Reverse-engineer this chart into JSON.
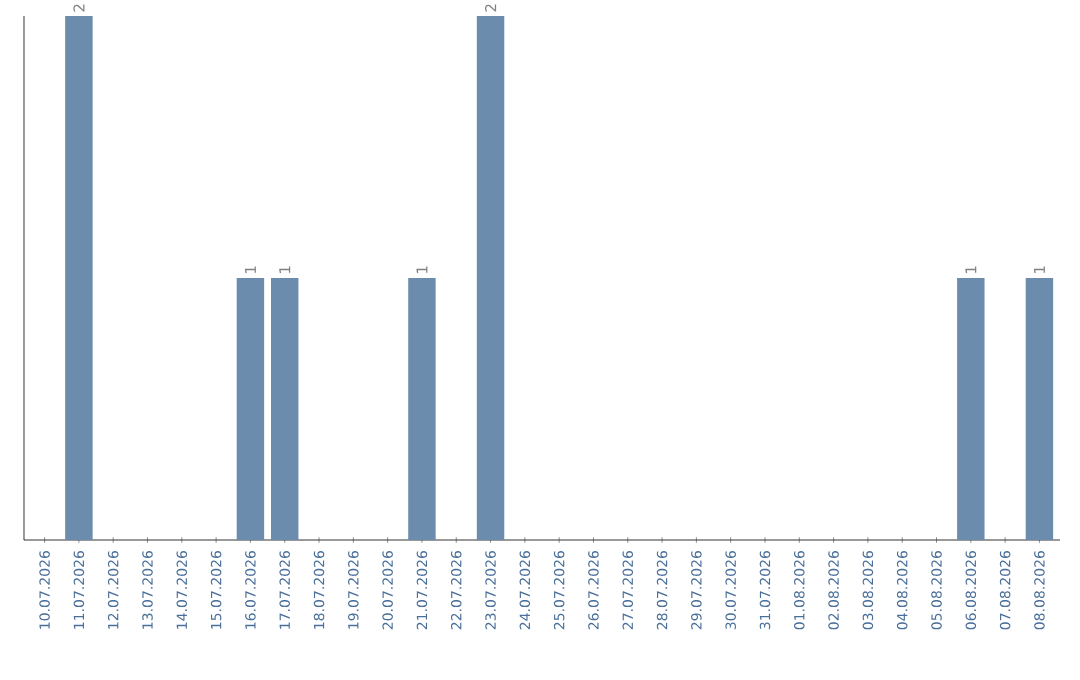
{
  "chart_data": {
    "type": "bar",
    "categories": [
      "10.07.2026",
      "11.07.2026",
      "12.07.2026",
      "13.07.2026",
      "14.07.2026",
      "15.07.2026",
      "16.07.2026",
      "17.07.2026",
      "18.07.2026",
      "19.07.2026",
      "20.07.2026",
      "21.07.2026",
      "22.07.2026",
      "23.07.2026",
      "24.07.2026",
      "25.07.2026",
      "26.07.2026",
      "27.07.2026",
      "28.07.2026",
      "29.07.2026",
      "30.07.2026",
      "31.07.2026",
      "01.08.2026",
      "02.08.2026",
      "03.08.2026",
      "04.08.2026",
      "05.08.2026",
      "06.08.2026",
      "07.08.2026",
      "08.08.2026"
    ],
    "values": [
      0,
      2,
      0,
      0,
      0,
      0,
      1,
      1,
      0,
      0,
      0,
      1,
      0,
      2,
      0,
      0,
      0,
      0,
      0,
      0,
      0,
      0,
      0,
      0,
      0,
      0,
      0,
      1,
      0,
      1
    ],
    "value_labels": [
      null,
      "2",
      null,
      null,
      null,
      null,
      "1",
      "1",
      null,
      null,
      null,
      "1",
      null,
      "2",
      null,
      null,
      null,
      null,
      null,
      null,
      null,
      null,
      null,
      null,
      null,
      null,
      null,
      "1",
      null,
      "1"
    ],
    "color": "#6b8cad"
  }
}
